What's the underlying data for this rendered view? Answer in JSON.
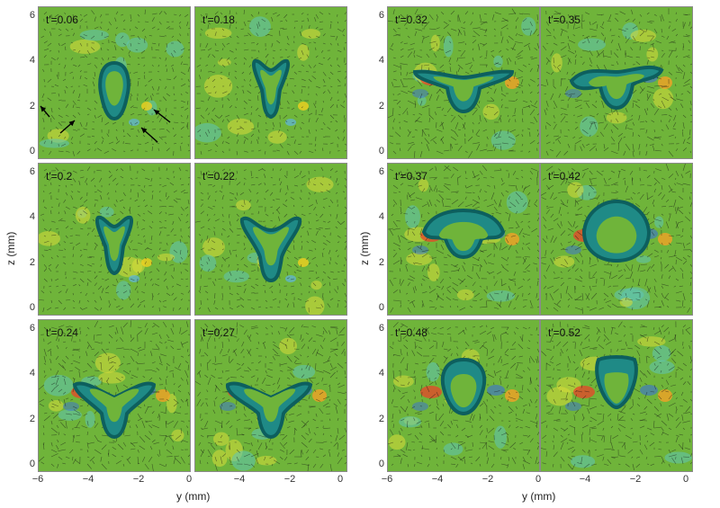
{
  "figure": {
    "z_axis_label": "z (mm)",
    "y_axis_label": "y (mm)",
    "y_ticks": [
      "6",
      "4",
      "2",
      "0"
    ],
    "x_ticks": [
      "−6",
      "−4",
      "−2",
      "0"
    ],
    "colors": {
      "background": "#6fb43a",
      "vortex_fill": "#1f8a86",
      "vortex_edge": "#0d5f5e",
      "positive": "#e8442a",
      "negative": "#3a6fd6",
      "vector": "#111111"
    },
    "panels": [
      {
        "label": "t′=0.06",
        "shape": "drop",
        "arrows": true
      },
      {
        "label": "t′=0.18",
        "shape": "y-narrow"
      },
      {
        "label": "t′=0.32",
        "shape": "t-wide"
      },
      {
        "label": "t′=0.35",
        "shape": "t-bent"
      },
      {
        "label": "t′=0.2",
        "shape": "y-narrow"
      },
      {
        "label": "t′=0.22",
        "shape": "y-wide"
      },
      {
        "label": "t′=0.37",
        "shape": "dome"
      },
      {
        "label": "t′=0.42",
        "shape": "ring"
      },
      {
        "label": "t′=0.24",
        "shape": "y-spread"
      },
      {
        "label": "t′=0.27",
        "shape": "y-spread2"
      },
      {
        "label": "t′=0.48",
        "shape": "oval"
      },
      {
        "label": "t′=0.52",
        "shape": "cup"
      }
    ]
  }
}
